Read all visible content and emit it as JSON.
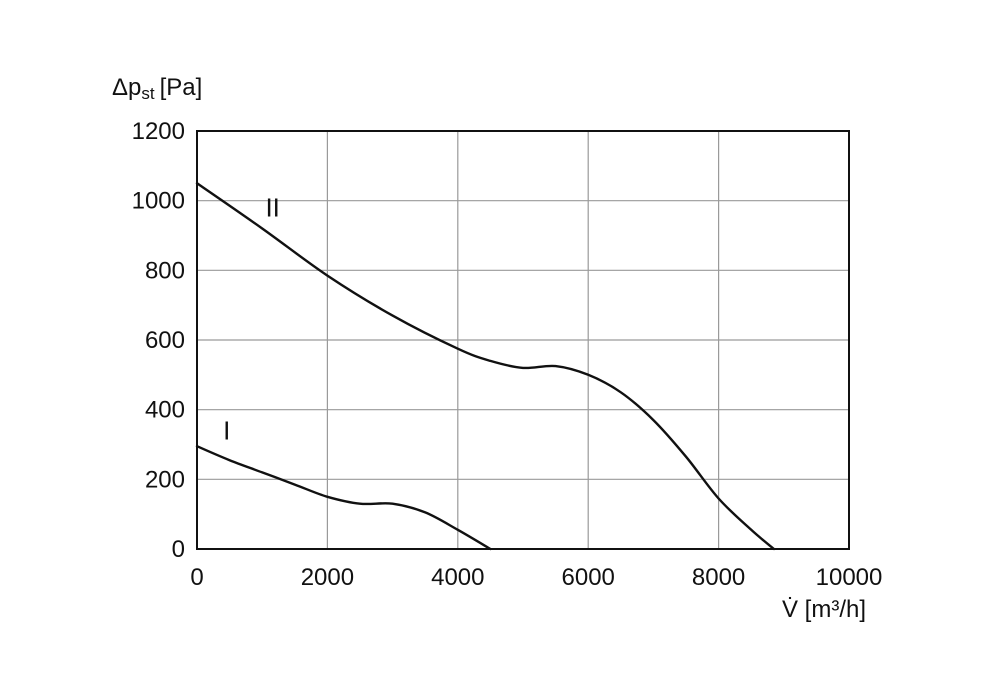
{
  "chart_data": {
    "type": "line",
    "ylabel": "Δp",
    "ylabel_sub": "st",
    "ylabel_unit": "[Pa]",
    "xlabel": "V̇ [m³/h]",
    "xlim": [
      0,
      10000
    ],
    "ylim": [
      0,
      1200
    ],
    "xticks": [
      0,
      2000,
      4000,
      6000,
      8000,
      10000
    ],
    "yticks": [
      0,
      200,
      400,
      600,
      800,
      1000,
      1200
    ],
    "xtick_labels": [
      "0",
      "2000",
      "4000",
      "6000",
      "8000",
      "10000"
    ],
    "ytick_labels": [
      "0",
      "200",
      "400",
      "600",
      "800",
      "1000",
      "1200"
    ],
    "grid": true,
    "series": [
      {
        "name": "I",
        "x": [
          0,
          500,
          1000,
          1500,
          2000,
          2500,
          3000,
          3500,
          4000,
          4500
        ],
        "y": [
          295,
          255,
          220,
          185,
          150,
          130,
          130,
          105,
          55,
          0
        ]
      },
      {
        "name": "II",
        "x": [
          0,
          1000,
          2000,
          3000,
          4000,
          4500,
          5000,
          5500,
          6000,
          6500,
          7000,
          7500,
          8000,
          8500,
          8850
        ],
        "y": [
          1050,
          920,
          785,
          670,
          575,
          540,
          520,
          525,
          500,
          450,
          370,
          265,
          145,
          55,
          0
        ],
        "label_at": [
          1050,
          980
        ]
      }
    ]
  }
}
